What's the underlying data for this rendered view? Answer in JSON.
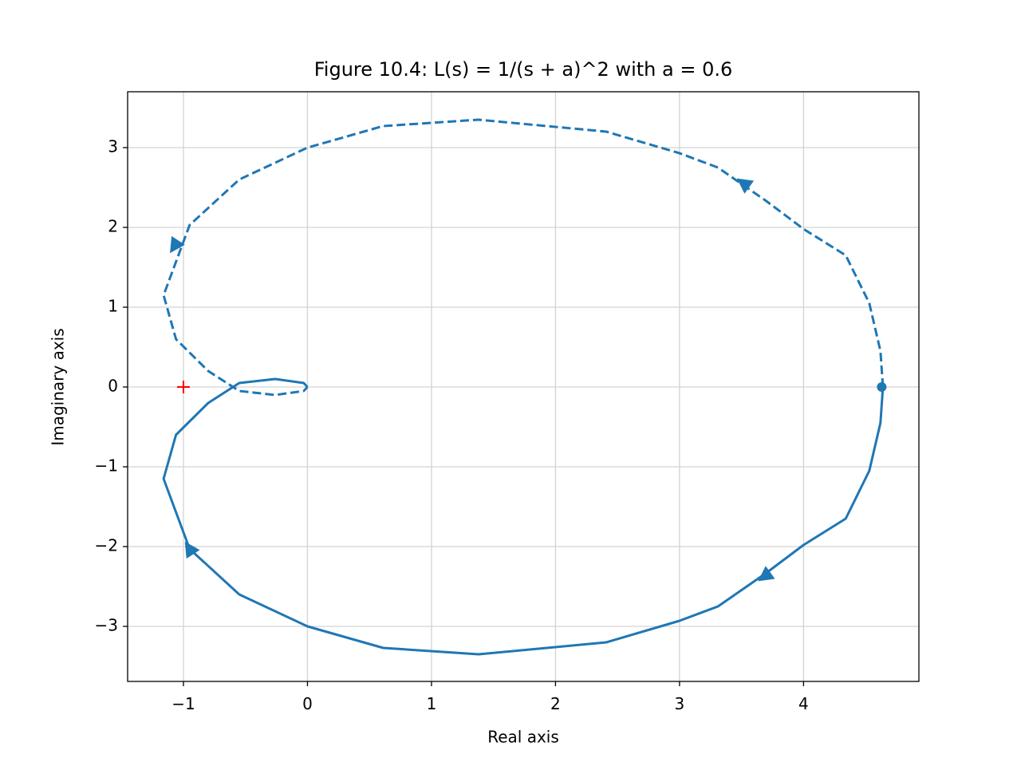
{
  "chart_data": {
    "type": "nyquist",
    "title": "Figure 10.4: L(s) = 1/(s + a)^2 with a = 0.6",
    "xlabel": "Real axis",
    "ylabel": "Imaginary axis",
    "xlim": [
      -1.45,
      4.93
    ],
    "ylim": [
      -3.69,
      3.7
    ],
    "xticks": [
      {
        "value": -1,
        "label": "−1"
      },
      0,
      1,
      2,
      3,
      4
    ],
    "yticks": [
      {
        "value": -3,
        "label": "−3"
      },
      {
        "value": -2,
        "label": "−2"
      },
      {
        "value": -1,
        "label": "−1"
      },
      0,
      1,
      2,
      3
    ],
    "grid": true,
    "series": [
      {
        "color": "#1f77b4",
        "linestyle": "solid",
        "x": [
          4.64,
          4.62,
          4.53,
          4.34,
          4.0,
          3.7,
          3.31,
          3.0,
          2.41,
          1.38,
          0.61,
          0,
          -0.55,
          -0.95,
          -1.16,
          -1.06,
          -0.8,
          -0.55,
          -0.26,
          -0.03,
          0
        ],
        "y": [
          0,
          -0.45,
          -1.05,
          -1.65,
          -1.98,
          -2.33,
          -2.75,
          -2.93,
          -3.2,
          -3.35,
          -3.27,
          -3.0,
          -2.6,
          -2.03,
          -1.15,
          -0.6,
          -0.2,
          0.05,
          0.1,
          0.05,
          0
        ],
        "arrows": {
          "x": [
            3.69,
            -0.95
          ],
          "y": [
            -2.37,
            -2.03
          ]
        }
      },
      {
        "color": "#1f77b4",
        "linestyle": "dashed",
        "x": [
          4.64,
          4.62,
          4.53,
          4.34,
          4.0,
          3.7,
          3.31,
          3.0,
          2.41,
          1.38,
          0.61,
          0,
          -0.55,
          -0.95,
          -1.16,
          -1.06,
          -0.8,
          -0.55,
          -0.26,
          -0.03,
          0
        ],
        "y": [
          0,
          0.45,
          1.05,
          1.65,
          1.98,
          2.33,
          2.75,
          2.93,
          3.2,
          3.35,
          3.27,
          3.0,
          2.6,
          2.03,
          1.15,
          0.6,
          0.2,
          -0.05,
          -0.1,
          -0.05,
          0
        ],
        "arrows": {
          "x": [
            3.52,
            -1.07
          ],
          "y": [
            2.55,
            1.77
          ]
        }
      }
    ],
    "start_point": {
      "x": 4.63,
      "y": 0,
      "color": "#1f77b4"
    },
    "critical_point": {
      "x": -1,
      "y": 0,
      "color": "red"
    }
  }
}
